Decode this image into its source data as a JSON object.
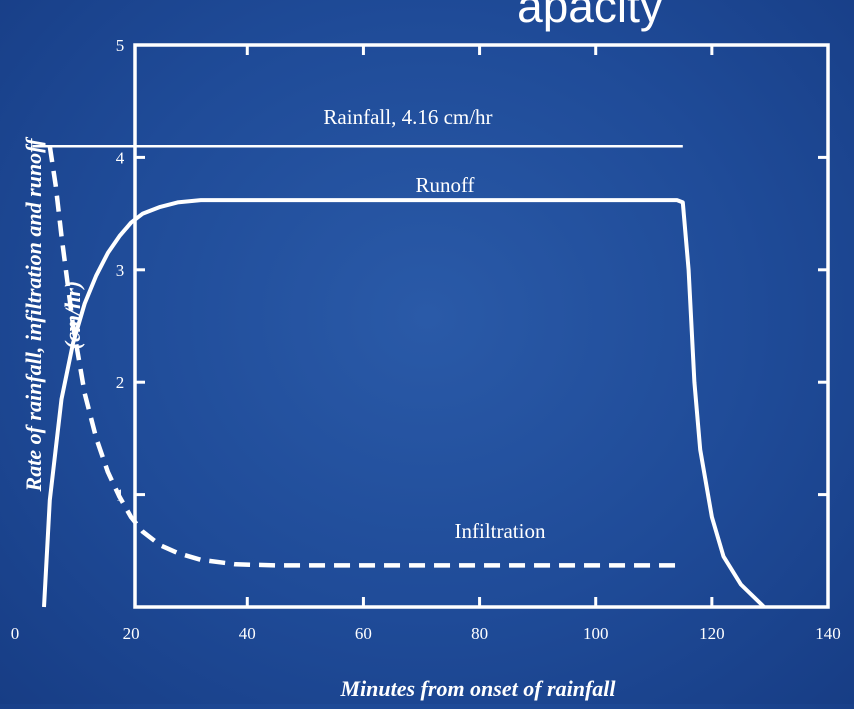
{
  "chart_data": {
    "type": "line",
    "title": "",
    "title_fragment": "apacity",
    "xlabel": "Minutes from onset of rainfall",
    "ylabel": "Rate of rainfall, infiltration and runoff",
    "ylabel_unit": "(cm/hr)",
    "xlim": [
      0,
      140
    ],
    "ylim": [
      0,
      5
    ],
    "x_ticks": [
      0,
      20,
      40,
      60,
      80,
      100,
      120,
      140
    ],
    "y_ticks": [
      1,
      2,
      3,
      4,
      5
    ],
    "grid": false,
    "background_color": "#1f4b98",
    "line_color": "#ffffff",
    "series": [
      {
        "name": "Rainfall, 4.16 cm/hr",
        "style": "solid",
        "x": [
          3,
          115
        ],
        "y": [
          4.1,
          4.1
        ]
      },
      {
        "name": "Runoff",
        "style": "solid",
        "x": [
          5,
          6,
          8,
          10,
          12,
          14,
          16,
          18,
          20,
          22,
          25,
          28,
          32,
          40,
          60,
          80,
          100,
          114,
          115,
          116,
          117,
          118,
          120,
          122,
          125,
          129
        ],
        "y": [
          0,
          0.95,
          1.85,
          2.35,
          2.7,
          2.95,
          3.15,
          3.3,
          3.42,
          3.5,
          3.56,
          3.6,
          3.62,
          3.62,
          3.62,
          3.62,
          3.62,
          3.62,
          3.6,
          3.0,
          2.0,
          1.4,
          0.8,
          0.45,
          0.2,
          0
        ]
      },
      {
        "name": "Infiltration",
        "style": "dashed",
        "x": [
          6,
          7,
          8,
          10,
          12,
          14,
          16,
          18,
          20,
          22,
          25,
          28,
          32,
          38,
          45,
          60,
          80,
          100,
          115
        ],
        "y": [
          4.1,
          3.75,
          3.3,
          2.5,
          1.9,
          1.5,
          1.2,
          0.98,
          0.8,
          0.67,
          0.55,
          0.48,
          0.42,
          0.38,
          0.37,
          0.37,
          0.37,
          0.37,
          0.37
        ]
      }
    ]
  }
}
